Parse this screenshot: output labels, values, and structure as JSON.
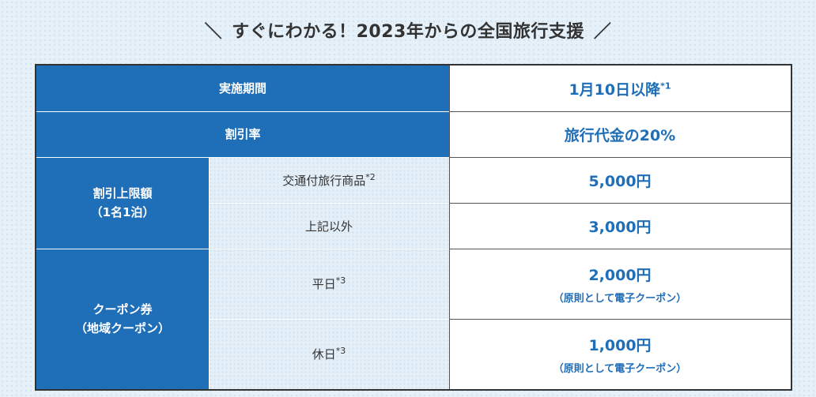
{
  "title": {
    "left_mark": "＼",
    "text": "すぐにわかる！2023年からの全国旅行支援",
    "right_mark": "／"
  },
  "table": {
    "period": {
      "label": "実施期間",
      "value": "1月10日以降",
      "note_mark": "*1"
    },
    "discount_rate": {
      "label": "割引率",
      "value": "旅行代金の20%"
    },
    "discount_limit": {
      "label_line1": "割引上限額",
      "label_line2": "（1名1泊）",
      "rows": [
        {
          "label": "交通付旅行商品",
          "note_mark": "*2",
          "value": "5,000円"
        },
        {
          "label": "上記以外",
          "note_mark": "",
          "value": "3,000円"
        }
      ]
    },
    "coupon": {
      "label_line1": "クーポン券",
      "label_line2": "（地域クーポン）",
      "rows": [
        {
          "label": "平日",
          "note_mark": "*3",
          "value": "2,000円",
          "note": "（原則として電子クーポン）"
        },
        {
          "label": "休日",
          "note_mark": "*3",
          "value": "1,000円",
          "note": "（原則として電子クーポン）"
        }
      ]
    }
  },
  "colors": {
    "header_blue": "#1f6eb8",
    "value_text_blue": "#1f6eb8",
    "page_background": "#e6f0f8"
  }
}
